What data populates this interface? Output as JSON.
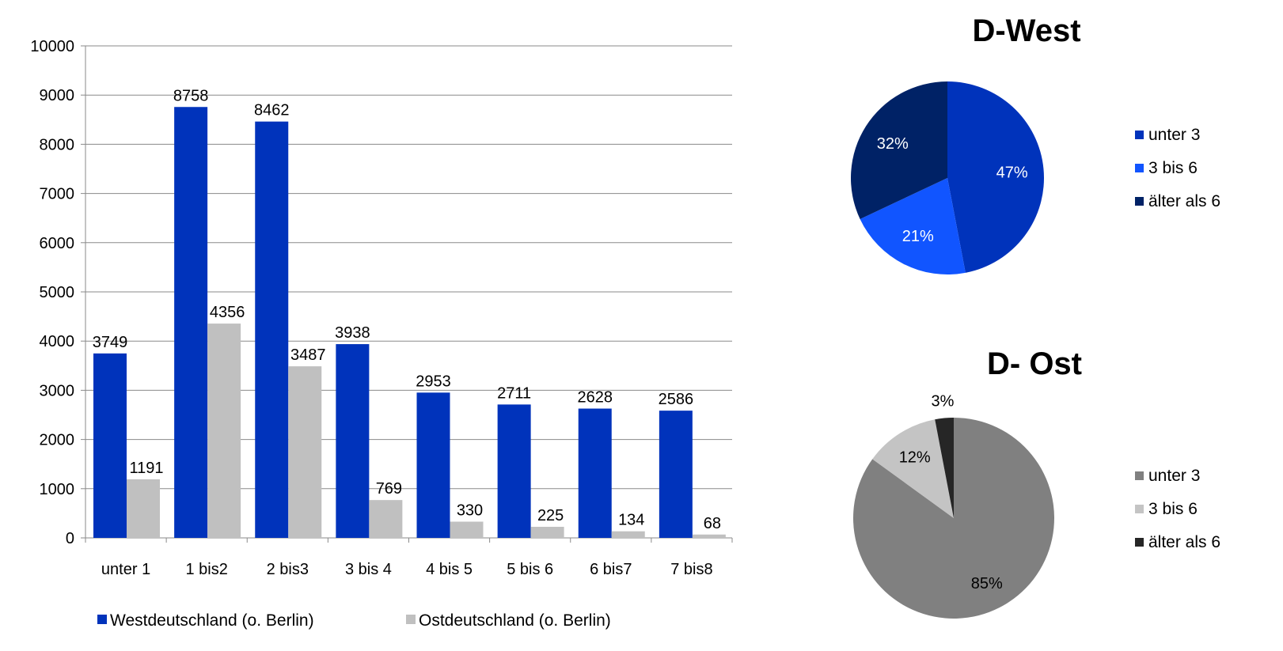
{
  "chart_data": [
    {
      "type": "bar",
      "categories": [
        "unter 1",
        "1 bis2",
        "2 bis3",
        "3 bis 4",
        "4 bis 5",
        "5 bis 6",
        "6 bis7",
        "7 bis8"
      ],
      "series": [
        {
          "name": "Westdeutschland (o. Berlin)",
          "color": "#0033bb",
          "values": [
            3749,
            8758,
            8462,
            3938,
            2953,
            2711,
            2628,
            2586
          ]
        },
        {
          "name": "Ostdeutschland (o. Berlin)",
          "color": "#c0c0c0",
          "values": [
            1191,
            4356,
            3487,
            769,
            330,
            225,
            134,
            68
          ]
        }
      ],
      "yticks": [
        "0",
        "1000",
        "2000",
        "3000",
        "4000",
        "5000",
        "6000",
        "7000",
        "8000",
        "9000",
        "10000"
      ],
      "ylim": [
        0,
        10000
      ],
      "grid": true,
      "legend_position": "bottom"
    },
    {
      "type": "pie",
      "title": "D-West",
      "labels": [
        "unter 3",
        "3 bis 6",
        "älter als 6"
      ],
      "values": [
        47,
        21,
        32
      ],
      "value_labels": [
        "47%",
        "21%",
        "32%"
      ],
      "colors": [
        "#0033bb",
        "#1155ff",
        "#002266"
      ],
      "label_color": "#ffffff",
      "legend_position": "right"
    },
    {
      "type": "pie",
      "title": "D- Ost",
      "labels": [
        "unter 3",
        "3 bis 6",
        "älter als 6"
      ],
      "values": [
        85,
        12,
        3
      ],
      "value_labels": [
        "85%",
        "12%",
        "3%"
      ],
      "colors": [
        "#808080",
        "#c4c4c4",
        "#262626"
      ],
      "label_color": "#000000",
      "legend_position": "right"
    }
  ]
}
